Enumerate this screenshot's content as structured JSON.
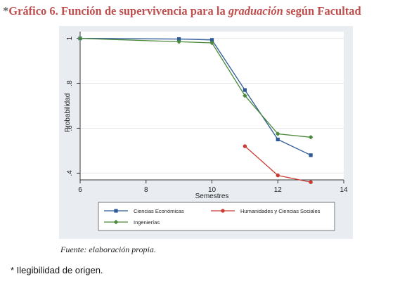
{
  "title": {
    "prefix": "*",
    "part1": "Gráfico 6. Función de supervivencia para la ",
    "italic": "graduación",
    "part2": " según Facultad"
  },
  "source_note": "Fuente: elaboración propia.",
  "footnote": "* Ilegibilidad de origen.",
  "colors": {
    "title": "#c0504d",
    "panel_background": "#e9ecf1",
    "plot_background": "#ffffff"
  },
  "chart_data": {
    "type": "line",
    "title": "",
    "xlabel": "Semestres",
    "ylabel": "Probabilidad",
    "xlim": [
      6,
      14
    ],
    "ylim": [
      0.37,
      1.03
    ],
    "xticks": [
      6,
      8,
      10,
      12,
      14
    ],
    "yticks": [
      0.4,
      0.6,
      0.8,
      1
    ],
    "ytick_labels": [
      ".4",
      ".6",
      ".8",
      "1"
    ],
    "grid": "horizontal",
    "legend_position": "bottom",
    "series": [
      {
        "name": "Ciencias Económicas",
        "color": "#2d5a96",
        "marker": "square",
        "points": [
          [
            6,
            1.0
          ],
          [
            9,
            0.997
          ],
          [
            10,
            0.993
          ],
          [
            11,
            0.77
          ],
          [
            12,
            0.55
          ],
          [
            13,
            0.48
          ]
        ]
      },
      {
        "name": "Humanidades y Ciencias Sociales",
        "color": "#c83c32",
        "marker": "circle",
        "points": [
          [
            11,
            0.52
          ],
          [
            12,
            0.39
          ],
          [
            13,
            0.36
          ]
        ]
      },
      {
        "name": "Ingenierías",
        "color": "#4a8a3a",
        "marker": "diamond",
        "points": [
          [
            6,
            1.0
          ],
          [
            9,
            0.985
          ],
          [
            10,
            0.98
          ],
          [
            11,
            0.745
          ],
          [
            12,
            0.575
          ],
          [
            13,
            0.56
          ]
        ]
      }
    ]
  }
}
